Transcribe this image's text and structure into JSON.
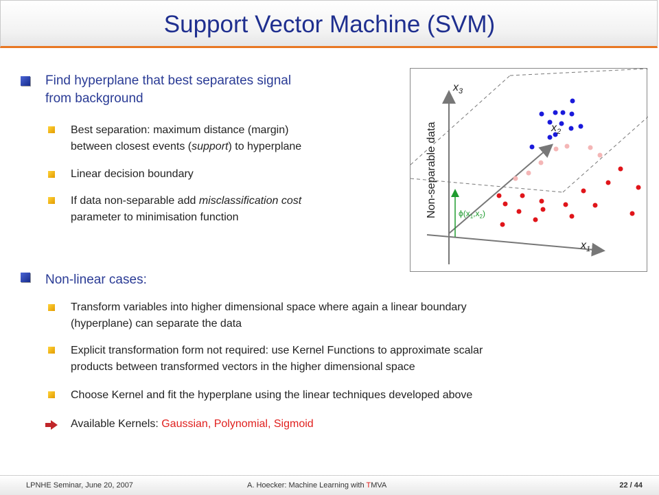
{
  "title": "Support Vector Machine (SVM)",
  "section1": {
    "heading_line1": "Find hyperplane that best separates signal",
    "heading_line2": "from background",
    "items": [
      {
        "line1_a": "Best separation: maximum distance (margin)",
        "line2_a": "between closest events (",
        "line2_em": "support",
        "line2_b": ") to hyperplane"
      },
      {
        "line1": "Linear decision boundary"
      },
      {
        "line1_a": "If data non-separable add ",
        "line1_em": "misclassification cost",
        "line2": "parameter to minimisation function"
      }
    ]
  },
  "section2": {
    "heading": "Non-linear cases:",
    "items": [
      {
        "line1": "Transform variables into higher dimensional space where again a linear boundary",
        "line2": "(hyperplane) can separate the data"
      },
      {
        "line1": "Explicit transformation form not required: use Kernel Functions to approximate scalar",
        "line2": "products between transformed vectors in the higher dimensional space"
      },
      {
        "line1": "Choose Kernel and fit the hyperplane using the linear techniques developed above"
      }
    ],
    "kernels_label": "Available Kernels: ",
    "kernels_list": "Gaussian, Polynomial, Sigmoid"
  },
  "figure": {
    "side_label": "Non-separable data",
    "x3_base": "x",
    "x3_sub": "3",
    "x2_base": "x",
    "x2_sub": "2",
    "x1_base": "x",
    "x1_sub": "1",
    "phi_label": "ϕ(x",
    "phi_sub1": "1",
    "phi_mid": ",x",
    "phi_sub2": "2",
    "phi_end": ")",
    "colors": {
      "signal": "#1a1adb",
      "background": "#e0151a",
      "faded": "#f4b6b6",
      "phi_arrow": "#1f9b2f"
    }
  },
  "footer": {
    "left": "LPNHE Seminar, June 20, 2007",
    "center_a": "A. Hoecker: Machine Learning with ",
    "center_t": "T",
    "center_b": "MVA",
    "page": "22",
    "sep": " / ",
    "total": "44"
  },
  "colors": {
    "title": "#1f2f8f",
    "accent_line": "#e87722",
    "kernel_names": "#e0201e"
  }
}
